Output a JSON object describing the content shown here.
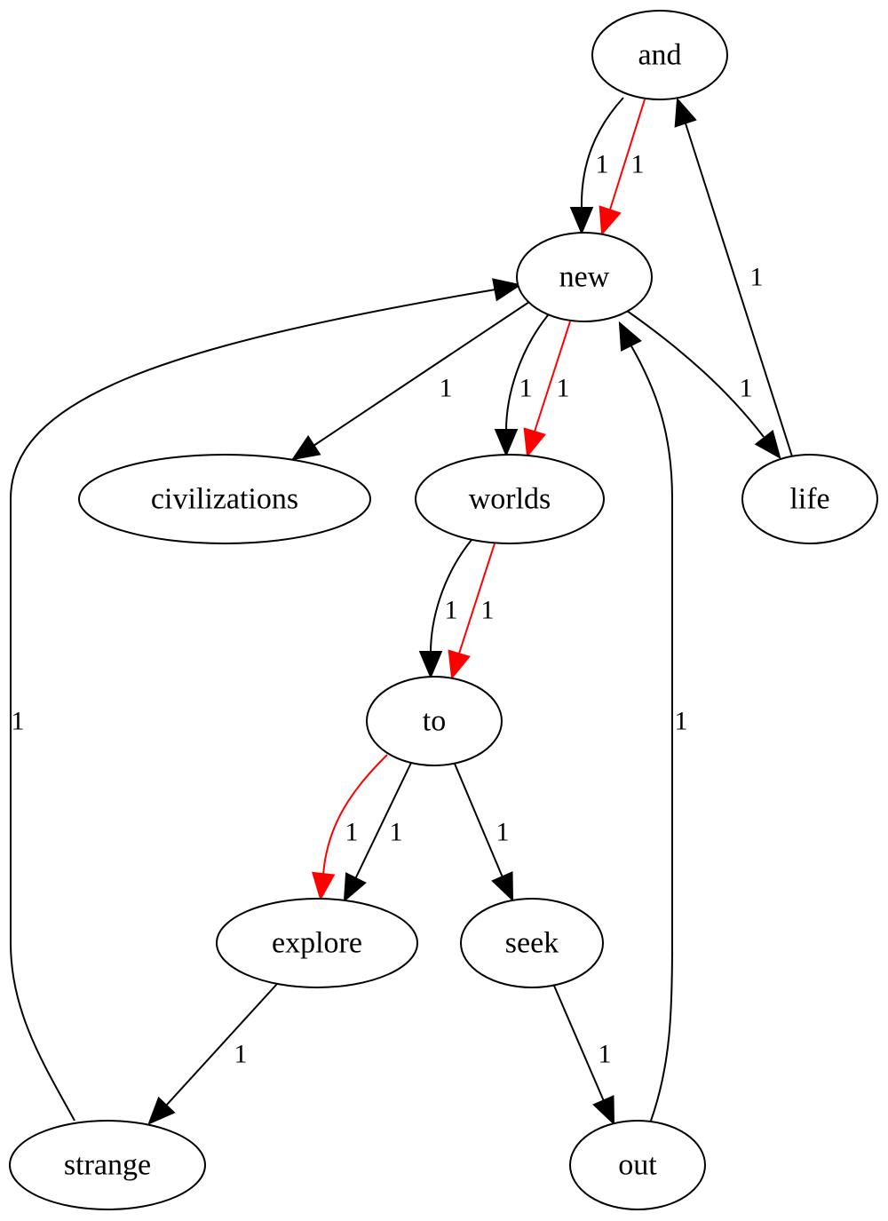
{
  "colors": {
    "default_edge": "#000000",
    "highlight_edge": "#ff0000",
    "node_stroke": "#000000",
    "background": "#ffffff"
  },
  "nodes": [
    {
      "id": "and",
      "label": "and"
    },
    {
      "id": "new",
      "label": "new"
    },
    {
      "id": "civilizations",
      "label": "civilizations"
    },
    {
      "id": "worlds",
      "label": "worlds"
    },
    {
      "id": "life",
      "label": "life"
    },
    {
      "id": "to",
      "label": "to"
    },
    {
      "id": "explore",
      "label": "explore"
    },
    {
      "id": "seek",
      "label": "seek"
    },
    {
      "id": "strange",
      "label": "strange"
    },
    {
      "id": "out",
      "label": "out"
    }
  ],
  "edges": [
    {
      "id": "e-and-new-black",
      "from": "and",
      "to": "new",
      "label": "1",
      "highlight": false
    },
    {
      "id": "e-and-new-red",
      "from": "and",
      "to": "new",
      "label": "1",
      "highlight": true
    },
    {
      "id": "e-new-civilizations",
      "from": "new",
      "to": "civilizations",
      "label": "1",
      "highlight": false
    },
    {
      "id": "e-new-worlds-black",
      "from": "new",
      "to": "worlds",
      "label": "1",
      "highlight": false
    },
    {
      "id": "e-new-worlds-red",
      "from": "new",
      "to": "worlds",
      "label": "1",
      "highlight": true
    },
    {
      "id": "e-new-life",
      "from": "new",
      "to": "life",
      "label": "1",
      "highlight": false
    },
    {
      "id": "e-life-and",
      "from": "life",
      "to": "and",
      "label": "1",
      "highlight": false
    },
    {
      "id": "e-worlds-to-black",
      "from": "worlds",
      "to": "to",
      "label": "1",
      "highlight": false
    },
    {
      "id": "e-worlds-to-red",
      "from": "worlds",
      "to": "to",
      "label": "1",
      "highlight": true
    },
    {
      "id": "e-to-explore-red",
      "from": "to",
      "to": "explore",
      "label": "1",
      "highlight": true
    },
    {
      "id": "e-to-explore-black",
      "from": "to",
      "to": "explore",
      "label": "1",
      "highlight": false
    },
    {
      "id": "e-to-seek",
      "from": "to",
      "to": "seek",
      "label": "1",
      "highlight": false
    },
    {
      "id": "e-explore-strange",
      "from": "explore",
      "to": "strange",
      "label": "1",
      "highlight": false
    },
    {
      "id": "e-seek-out",
      "from": "seek",
      "to": "out",
      "label": "1",
      "highlight": false
    },
    {
      "id": "e-strange-new",
      "from": "strange",
      "to": "new",
      "label": "1",
      "highlight": false
    },
    {
      "id": "e-out-new",
      "from": "out",
      "to": "new",
      "label": "1",
      "highlight": false
    }
  ]
}
